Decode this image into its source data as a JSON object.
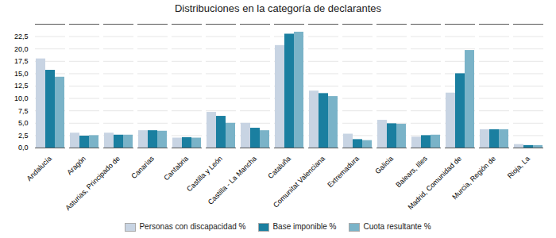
{
  "chart_data": {
    "type": "bar",
    "title": "Distribuciones en la categoría de declarantes",
    "categories": [
      "Andalucía",
      "Aragón",
      "Asturias, Principado de",
      "Canarias",
      "Cantabria",
      "Castilla y León",
      "Castilla - La Mancha",
      "Cataluña",
      "Comunitat Valenciana",
      "Extremadura",
      "Galicia",
      "Balears, Illes",
      "Madrid, Comunidad de",
      "Murcia, Región de",
      "Rioja, La"
    ],
    "series": [
      {
        "name": "Personas con discapacidad %",
        "color": "#c8d4e3",
        "values": [
          18.0,
          3.0,
          3.0,
          3.5,
          2.0,
          7.2,
          5.0,
          20.7,
          11.5,
          2.8,
          5.6,
          2.2,
          11.1,
          3.7,
          0.7
        ]
      },
      {
        "name": "Base imponible %",
        "color": "#1a7fa0",
        "values": [
          15.7,
          2.4,
          2.6,
          3.5,
          2.1,
          6.4,
          4.0,
          23.0,
          11.0,
          1.7,
          4.9,
          2.5,
          15.0,
          3.7,
          0.5
        ]
      },
      {
        "name": "Cuota resultante %",
        "color": "#7ab3c8",
        "values": [
          14.3,
          2.5,
          2.6,
          3.4,
          2.0,
          5.0,
          3.5,
          23.4,
          10.4,
          1.5,
          4.8,
          2.6,
          19.7,
          3.7,
          0.5
        ]
      }
    ],
    "ylim": [
      0,
      25
    ],
    "yticks": [
      {
        "value": 0.0,
        "label": "0,0"
      },
      {
        "value": 2.5,
        "label": "2,5"
      },
      {
        "value": 5.0,
        "label": "5,0"
      },
      {
        "value": 7.5,
        "label": "7,5"
      },
      {
        "value": 10.0,
        "label": "10,0"
      },
      {
        "value": 12.5,
        "label": "12,5"
      },
      {
        "value": 15.0,
        "label": "15,0"
      },
      {
        "value": 17.5,
        "label": "17,5"
      },
      {
        "value": 20.0,
        "label": "20,0"
      },
      {
        "value": 22.5,
        "label": "22,5"
      }
    ],
    "grid": true,
    "legend": "bottom"
  }
}
